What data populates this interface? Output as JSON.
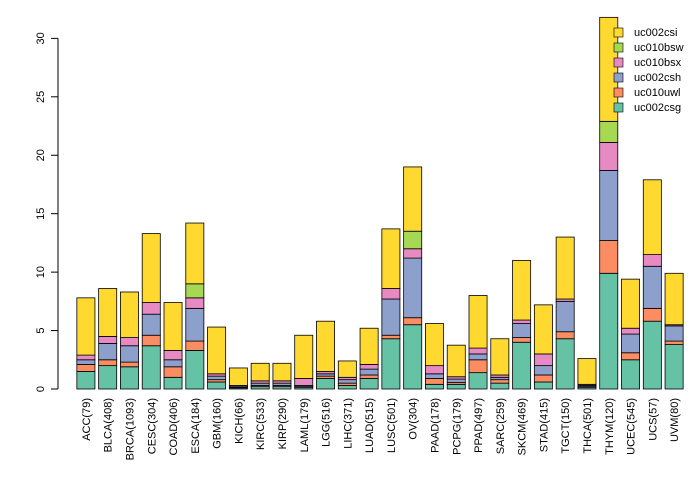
{
  "chart_data": {
    "type": "bar",
    "stacked": true,
    "title": "",
    "xlabel": "",
    "ylabel": "",
    "ylim": [
      0,
      32
    ],
    "yticks": [
      0,
      5,
      10,
      15,
      20,
      25,
      30
    ],
    "legend_position": "top-right",
    "categories": [
      "ACC(79)",
      "BLCA(408)",
      "BRCA(1093)",
      "CESC(304)",
      "COAD(406)",
      "ESCA(184)",
      "GBM(160)",
      "KICH(66)",
      "KIRC(533)",
      "KIRP(290)",
      "LAML(179)",
      "LGG(516)",
      "LIHC(371)",
      "LUAD(515)",
      "LUSC(501)",
      "OV(304)",
      "PAAD(178)",
      "PCPG(179)",
      "PPAD(497)",
      "SARC(259)",
      "SKCM(469)",
      "STAD(415)",
      "TGCT(150)",
      "THCA(501)",
      "THYM(120)",
      "UCEC(545)",
      "UCS(57)",
      "UVM(80)"
    ],
    "series": [
      {
        "name": "uc002csg",
        "color": "#66c2a5",
        "values": [
          1.5,
          2.0,
          1.9,
          3.7,
          1.0,
          3.3,
          0.6,
          0.1,
          0.2,
          0.2,
          0.15,
          0.9,
          0.3,
          0.9,
          4.3,
          5.5,
          0.4,
          0.4,
          1.4,
          0.5,
          4.0,
          0.6,
          4.3,
          0.15,
          9.9,
          2.5,
          5.8,
          3.8
        ]
      },
      {
        "name": "uc010uwl",
        "color": "#fc8d62",
        "values": [
          0.6,
          0.5,
          0.4,
          0.9,
          0.9,
          0.8,
          0.2,
          0.05,
          0.1,
          0.1,
          0.05,
          0.2,
          0.2,
          0.3,
          0.3,
          0.6,
          0.5,
          0.15,
          1.1,
          0.3,
          0.4,
          0.6,
          0.6,
          0.05,
          2.8,
          0.6,
          1.1,
          0.3
        ]
      },
      {
        "name": "uc002csh",
        "color": "#8da0cb",
        "values": [
          0.4,
          1.4,
          1.4,
          1.8,
          0.6,
          2.8,
          0.3,
          0.1,
          0.2,
          0.2,
          0.1,
          0.2,
          0.3,
          0.5,
          3.1,
          5.1,
          0.4,
          0.3,
          0.5,
          0.2,
          1.2,
          0.8,
          2.6,
          0.1,
          6.0,
          1.6,
          3.6,
          1.3
        ]
      },
      {
        "name": "uc010bsx",
        "color": "#e78ac3",
        "values": [
          0.4,
          0.6,
          0.7,
          1.0,
          0.8,
          0.9,
          0.2,
          0.05,
          0.2,
          0.2,
          0.6,
          0.2,
          0.2,
          0.4,
          0.9,
          0.8,
          0.7,
          0.2,
          0.5,
          0.2,
          0.3,
          1.0,
          0.2,
          0.1,
          2.4,
          0.5,
          1.0,
          0.1
        ]
      },
      {
        "name": "uc010bsw",
        "color": "#a6d854",
        "values": [
          0,
          0,
          0,
          0,
          0,
          1.2,
          0,
          0,
          0,
          0,
          0,
          0,
          0,
          0,
          0,
          1.5,
          0,
          0,
          0,
          0,
          0,
          0,
          0,
          0,
          1.8,
          0,
          0,
          0
        ]
      },
      {
        "name": "uc002csi",
        "color": "#ffd92f",
        "values": [
          4.9,
          4.1,
          3.9,
          5.9,
          4.1,
          5.2,
          4.0,
          1.5,
          1.5,
          1.5,
          3.7,
          4.3,
          1.4,
          3.1,
          5.1,
          5.5,
          3.6,
          2.7,
          4.5,
          3.1,
          5.1,
          4.2,
          5.3,
          2.2,
          8.9,
          4.2,
          6.4,
          4.4
        ]
      }
    ]
  }
}
